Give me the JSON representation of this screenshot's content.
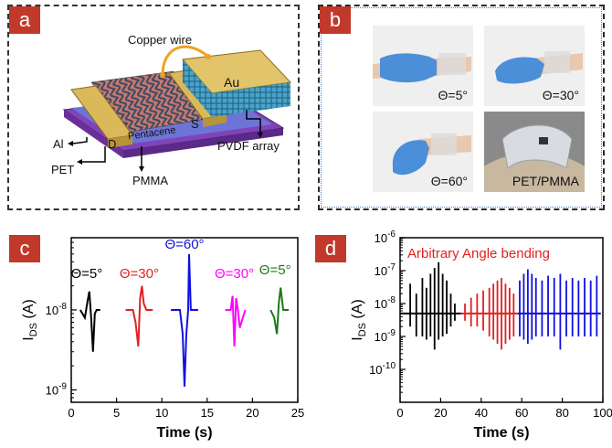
{
  "panels": {
    "a": {
      "badge": "a",
      "labels": {
        "copper_wire": "Copper wire",
        "au": "Au",
        "pentacene": "Pentacene",
        "s": "S",
        "d": "D",
        "al": "Al",
        "pet": "PET",
        "pmma": "PMMA",
        "pvdf": "PVDF array"
      }
    },
    "b": {
      "badge": "b",
      "captions": [
        "Θ=5°",
        "Θ=30°",
        "Θ=60°",
        "PET/PMMA"
      ]
    },
    "c": {
      "badge": "c"
    },
    "d": {
      "badge": "d"
    }
  },
  "colors": {
    "badge": "#c0392b",
    "pet": "#7a3fb0",
    "au": "#d9b95a",
    "pvdf": "#3b8fb0",
    "black": "#000000",
    "red": "#e32020",
    "blue": "#1010e0",
    "magenta": "#ff00ff",
    "green": "#1a7a1a"
  },
  "chart_data": [
    {
      "type": "line",
      "xlabel": "Time (s)",
      "ylabel": "I_DS (A)",
      "xlim": [
        0,
        25
      ],
      "x_ticks": [
        "0",
        "5",
        "10",
        "15",
        "20",
        "25"
      ],
      "y_scale": "log",
      "ylim": [
        7e-10,
        8e-08
      ],
      "y_ticks": [
        "10^-9",
        "10^-8"
      ],
      "annotations": [
        {
          "text": "Θ=5°",
          "x": 1.7,
          "color": "#000000"
        },
        {
          "text": "Θ=30°",
          "x": 7.5,
          "color": "#e32020"
        },
        {
          "text": "Θ=60°",
          "x": 12.5,
          "color": "#1010e0"
        },
        {
          "text": "Θ=30°",
          "x": 18.0,
          "color": "#ff00ff"
        },
        {
          "text": "Θ=5°",
          "x": 22.5,
          "color": "#1a7a1a"
        }
      ],
      "series": [
        {
          "color": "#000000",
          "points": [
            [
              1.0,
              1e-08
            ],
            [
              1.5,
              8e-09
            ],
            [
              1.8,
              1.3e-08
            ],
            [
              2.0,
              1.7e-08
            ],
            [
              2.2,
              8e-09
            ],
            [
              2.4,
              3e-09
            ],
            [
              2.6,
              9e-09
            ],
            [
              2.8,
              1e-08
            ],
            [
              3.2,
              1e-08
            ]
          ]
        },
        {
          "color": "#e32020",
          "points": [
            [
              6.0,
              1e-08
            ],
            [
              6.8,
              1e-08
            ],
            [
              7.1,
              7e-09
            ],
            [
              7.4,
              3.5e-09
            ],
            [
              7.6,
              1.4e-08
            ],
            [
              7.8,
              2e-08
            ],
            [
              8.0,
              1.2e-08
            ],
            [
              8.3,
              1e-08
            ],
            [
              9.0,
              1e-08
            ]
          ]
        },
        {
          "color": "#1010e0",
          "points": [
            [
              11.0,
              1e-08
            ],
            [
              12.0,
              1e-08
            ],
            [
              12.3,
              5e-09
            ],
            [
              12.5,
              1.1e-09
            ],
            [
              12.7,
              5e-09
            ],
            [
              12.9,
              1e-08
            ],
            [
              13.0,
              5e-08
            ],
            [
              13.2,
              1e-08
            ],
            [
              14.0,
              1e-08
            ]
          ]
        },
        {
          "color": "#ff00ff",
          "points": [
            [
              17.0,
              1e-08
            ],
            [
              17.6,
              1e-08
            ],
            [
              17.8,
              1.5e-08
            ],
            [
              18.0,
              3.5e-09
            ],
            [
              18.2,
              1.4e-08
            ],
            [
              18.4,
              1e-08
            ],
            [
              18.6,
              6e-09
            ],
            [
              19.2,
              1e-08
            ]
          ]
        },
        {
          "color": "#1a7a1a",
          "points": [
            [
              22.0,
              1e-08
            ],
            [
              22.4,
              8e-09
            ],
            [
              22.7,
              5e-09
            ],
            [
              22.9,
              1.2e-08
            ],
            [
              23.1,
              1.9e-08
            ],
            [
              23.4,
              1e-08
            ],
            [
              24.0,
              1e-08
            ]
          ]
        }
      ]
    },
    {
      "type": "line",
      "title": "Arbitrary Angle bending",
      "xlabel": "Time (s)",
      "ylabel": "I_DS (A)",
      "xlim": [
        0,
        100
      ],
      "x_ticks": [
        "0",
        "20",
        "40",
        "60",
        "80",
        "100"
      ],
      "y_scale": "log",
      "ylim": [
        1e-11,
        1e-06
      ],
      "y_ticks": [
        "10^-6",
        "10^-7",
        "10^-8",
        "10^-9",
        "10^-10"
      ],
      "baseline": 5e-09,
      "series": [
        {
          "color": "#000000",
          "x_range": [
            0,
            30
          ],
          "spikes": [
            [
              5,
              4e-08,
              2e-09
            ],
            [
              8,
              2e-08,
              1e-09
            ],
            [
              11,
              6e-08,
              1e-09
            ],
            [
              13,
              3e-08,
              8e-10
            ],
            [
              15,
              8e-08,
              1e-09
            ],
            [
              17,
              1.2e-07,
              4e-10
            ],
            [
              19,
              1.8e-07,
              8e-10
            ],
            [
              21,
              8e-08,
              1e-09
            ],
            [
              23,
              5e-08,
              1.2e-09
            ],
            [
              25,
              2e-08,
              2e-09
            ],
            [
              27,
              1e-08,
              3e-09
            ]
          ]
        },
        {
          "color": "#e32020",
          "x_range": [
            30,
            58
          ],
          "spikes": [
            [
              32,
              1e-08,
              3e-09
            ],
            [
              35,
              1.5e-08,
              2e-09
            ],
            [
              38,
              2e-08,
              2e-09
            ],
            [
              41,
              2.5e-08,
              1.5e-09
            ],
            [
              44,
              3e-08,
              1e-09
            ],
            [
              46,
              4e-08,
              8e-10
            ],
            [
              48,
              5e-08,
              6e-10
            ],
            [
              50,
              6e-08,
              4e-10
            ],
            [
              52,
              4e-08,
              6e-10
            ],
            [
              54,
              3e-08,
              8e-10
            ],
            [
              56,
              2e-08,
              1e-09
            ]
          ]
        },
        {
          "color": "#1010e0",
          "x_range": [
            58,
            99
          ],
          "spikes": [
            [
              59,
              5e-08,
              1e-09
            ],
            [
              61,
              8e-08,
              8e-10
            ],
            [
              63,
              1.1e-07,
              6e-10
            ],
            [
              65,
              8e-08,
              8e-10
            ],
            [
              67,
              6e-08,
              1e-09
            ],
            [
              70,
              5e-08,
              1e-09
            ],
            [
              73,
              7e-08,
              1e-09
            ],
            [
              76,
              6e-08,
              1e-09
            ],
            [
              79,
              8e-08,
              4e-10
            ],
            [
              82,
              5e-08,
              1e-09
            ],
            [
              85,
              6e-08,
              1e-09
            ],
            [
              88,
              5e-08,
              1e-09
            ],
            [
              91,
              6e-08,
              1e-09
            ],
            [
              94,
              5e-08,
              1e-09
            ],
            [
              97,
              7e-08,
              1e-09
            ]
          ]
        }
      ]
    }
  ]
}
